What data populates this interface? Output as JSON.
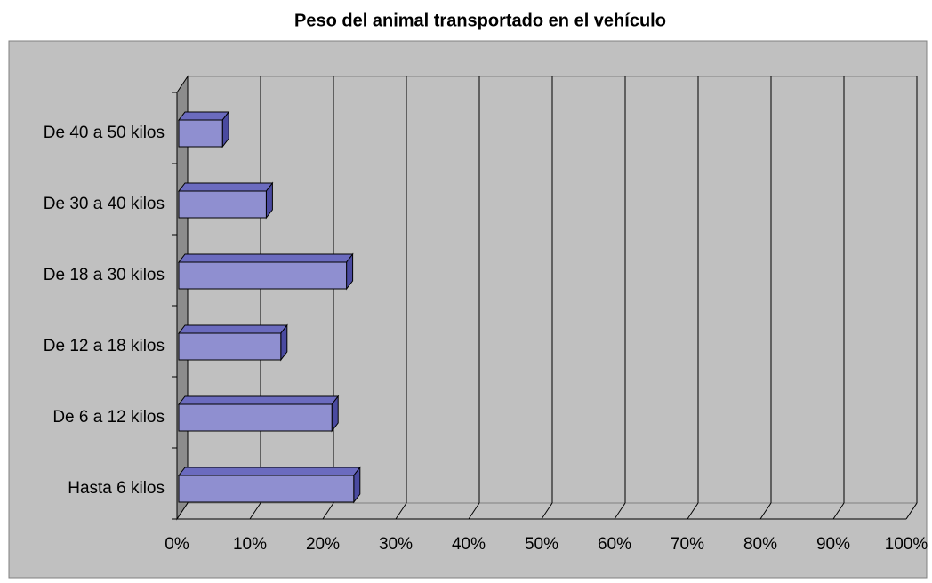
{
  "chart_data": {
    "type": "bar3d_horizontal",
    "title": "Peso del animal transportado en el vehículo",
    "categories": [
      "Hasta 6 kilos",
      "De 6 a 12 kilos",
      "De 12 a 18 kilos",
      "De 18 a 30 kilos",
      "De 30 a 40 kilos",
      "De 40 a 50 kilos"
    ],
    "values": [
      24,
      21,
      14,
      23,
      12,
      6
    ],
    "color": "#8f8fd0",
    "xlim": [
      0,
      100
    ],
    "xticks": [
      {
        "value": 0,
        "label": "0%"
      },
      {
        "value": 10,
        "label": "10%"
      },
      {
        "value": 20,
        "label": "20%"
      },
      {
        "value": 30,
        "label": "30%"
      },
      {
        "value": 40,
        "label": "40%"
      },
      {
        "value": 50,
        "label": "50%"
      },
      {
        "value": 60,
        "label": "60%"
      },
      {
        "value": 70,
        "label": "70%"
      },
      {
        "value": 80,
        "label": "80%"
      },
      {
        "value": 90,
        "label": "90%"
      },
      {
        "value": 100,
        "label": "100%"
      }
    ],
    "grid": true
  }
}
